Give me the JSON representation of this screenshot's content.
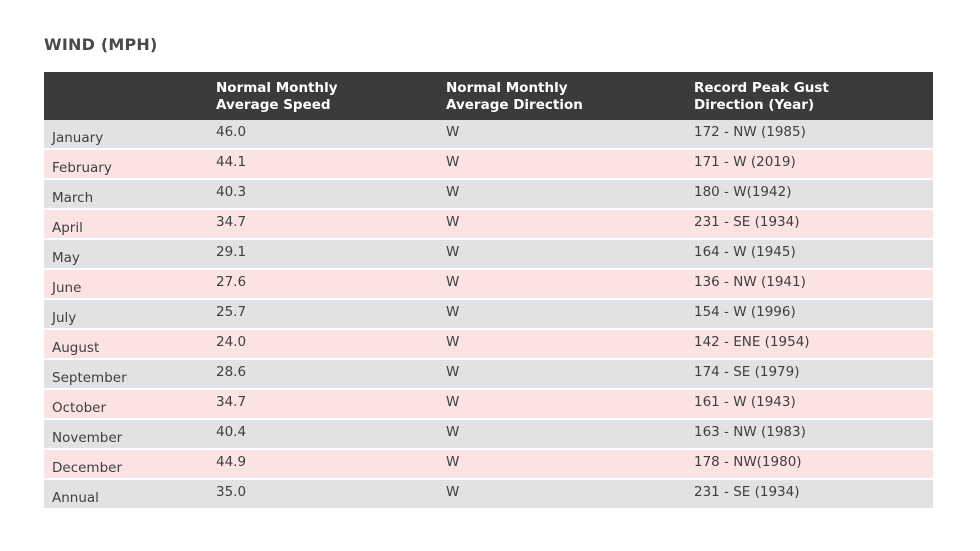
{
  "title": "WIND (MPH)",
  "table": {
    "headers": [
      "",
      "Normal Monthly\nAverage Speed",
      "Normal Monthly\nAverage Direction",
      "Record Peak Gust\nDirection (Year)"
    ],
    "header_lines": [
      [],
      [
        "Normal Monthly",
        "Average Speed"
      ],
      [
        "Normal Monthly",
        "Average Direction"
      ],
      [
        "Record Peak Gust",
        "Direction (Year)"
      ]
    ],
    "rows": [
      {
        "month": "January",
        "speed": "46.0",
        "direction": "W",
        "gust": "172 - NW (1985)"
      },
      {
        "month": "February",
        "speed": "44.1",
        "direction": "W",
        "gust": "171 - W (2019)"
      },
      {
        "month": "March",
        "speed": "40.3",
        "direction": "W",
        "gust": "180 - W(1942)"
      },
      {
        "month": "April",
        "speed": "34.7",
        "direction": "W",
        "gust": "231 - SE (1934)"
      },
      {
        "month": "May",
        "speed": "29.1",
        "direction": "W",
        "gust": "164 - W (1945)"
      },
      {
        "month": "June",
        "speed": "27.6",
        "direction": "W",
        "gust": "136 - NW (1941)"
      },
      {
        "month": "July",
        "speed": "25.7",
        "direction": "W",
        "gust": "154 - W (1996)"
      },
      {
        "month": "August",
        "speed": "24.0",
        "direction": "W",
        "gust": "142 - ENE (1954)"
      },
      {
        "month": "September",
        "speed": "28.6",
        "direction": "W",
        "gust": "174 - SE (1979)"
      },
      {
        "month": "October",
        "speed": "34.7",
        "direction": "W",
        "gust": "161 - W (1943)"
      },
      {
        "month": "November",
        "speed": "40.4",
        "direction": "W",
        "gust": "163 - NW (1983)"
      },
      {
        "month": "December",
        "speed": "44.9",
        "direction": "W",
        "gust": "178 - NW(1980)"
      },
      {
        "month": "Annual",
        "speed": "35.0",
        "direction": "W",
        "gust": "231 - SE (1934)"
      }
    ]
  },
  "colors": {
    "header_bg": "#3b3b3b",
    "row_gray": "#e2e2e2",
    "row_pink": "#fbe3e3"
  }
}
